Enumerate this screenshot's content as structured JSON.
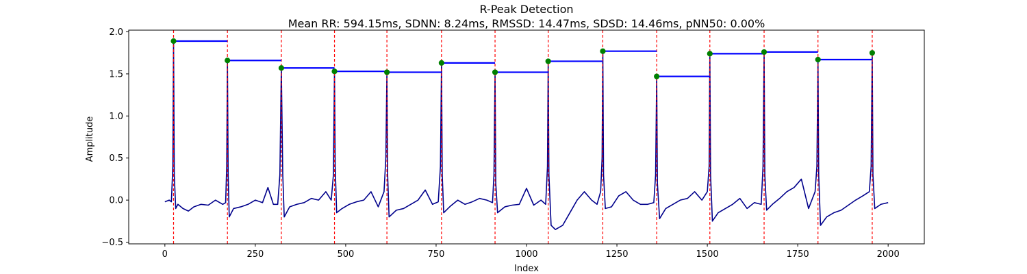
{
  "chart_data": {
    "type": "line",
    "title": "R-Peak Detection",
    "subtitle": "Mean RR: 594.15ms, SDNN: 8.24ms, RMSSD: 14.47ms, SDSD: 14.46ms, pNN50: 0.00%",
    "xlabel": "Index",
    "ylabel": "Amplitude",
    "xlim": [
      -100,
      2100
    ],
    "ylim": [
      -0.52,
      2.02
    ],
    "x_ticks": [
      0,
      250,
      500,
      750,
      1000,
      1250,
      1500,
      1750,
      2000
    ],
    "y_ticks": [
      -0.5,
      0.0,
      0.5,
      1.0,
      1.5,
      2.0
    ],
    "x_tick_labels": [
      "0",
      "250",
      "500",
      "750",
      "1000",
      "1250",
      "1500",
      "1750",
      "2000"
    ],
    "y_tick_labels": [
      "−0.5",
      "0.0",
      "0.5",
      "1.0",
      "1.5",
      "2.0"
    ],
    "grid": false,
    "colors": {
      "signal": "#00008b",
      "peak_marker": "#008000",
      "peak_line": "#ff0000",
      "rr_interval": "#0000ff"
    },
    "r_peaks": {
      "indices": [
        24,
        173,
        322,
        469,
        614,
        765,
        913,
        1060,
        1211,
        1360,
        1507,
        1657,
        1806,
        1956
      ],
      "amplitudes": [
        1.89,
        1.66,
        1.57,
        1.53,
        1.52,
        1.63,
        1.52,
        1.65,
        1.77,
        1.47,
        1.74,
        1.76,
        1.67,
        1.75
      ]
    },
    "signal": {
      "x": [
        0,
        12,
        18,
        22,
        24,
        26,
        30,
        36,
        50,
        65,
        80,
        100,
        120,
        140,
        160,
        168,
        171,
        173,
        175,
        178,
        190,
        210,
        230,
        250,
        270,
        285,
        300,
        312,
        318,
        322,
        326,
        330,
        345,
        365,
        385,
        405,
        425,
        445,
        460,
        466,
        469,
        471,
        475,
        490,
        510,
        530,
        550,
        570,
        590,
        606,
        611,
        614,
        616,
        620,
        640,
        660,
        680,
        700,
        720,
        740,
        756,
        762,
        765,
        767,
        771,
        790,
        810,
        830,
        850,
        870,
        890,
        906,
        910,
        913,
        915,
        920,
        940,
        960,
        980,
        1000,
        1020,
        1040,
        1053,
        1058,
        1060,
        1062,
        1068,
        1080,
        1100,
        1120,
        1140,
        1160,
        1180,
        1195,
        1205,
        1209,
        1211,
        1213,
        1218,
        1235,
        1255,
        1275,
        1295,
        1315,
        1335,
        1352,
        1357,
        1360,
        1362,
        1368,
        1385,
        1405,
        1425,
        1445,
        1465,
        1485,
        1500,
        1505,
        1507,
        1509,
        1514,
        1530,
        1550,
        1570,
        1590,
        1610,
        1630,
        1649,
        1654,
        1657,
        1659,
        1664,
        1680,
        1700,
        1720,
        1740,
        1760,
        1780,
        1798,
        1803,
        1806,
        1808,
        1813,
        1830,
        1850,
        1870,
        1890,
        1910,
        1930,
        1948,
        1953,
        1956,
        1958,
        1963,
        1980,
        2000
      ],
      "y": [
        -0.02,
        0.0,
        -0.02,
        0.4,
        1.89,
        0.3,
        -0.1,
        -0.05,
        -0.1,
        -0.13,
        -0.08,
        -0.05,
        -0.06,
        0.0,
        -0.05,
        -0.03,
        0.4,
        1.66,
        0.3,
        -0.2,
        -0.1,
        -0.08,
        -0.05,
        0.0,
        -0.03,
        0.15,
        -0.05,
        -0.05,
        0.3,
        1.57,
        0.3,
        -0.2,
        -0.08,
        -0.05,
        -0.03,
        0.02,
        0.0,
        0.1,
        0.0,
        0.3,
        1.53,
        0.4,
        -0.15,
        -0.1,
        -0.05,
        -0.02,
        0.0,
        0.1,
        -0.08,
        0.1,
        0.5,
        1.52,
        0.3,
        -0.2,
        -0.12,
        -0.1,
        -0.05,
        0.0,
        0.12,
        -0.05,
        -0.02,
        0.4,
        1.63,
        0.3,
        -0.15,
        -0.07,
        0.0,
        -0.05,
        -0.02,
        0.02,
        0.0,
        -0.03,
        0.3,
        1.52,
        0.2,
        -0.15,
        -0.08,
        -0.06,
        -0.05,
        0.14,
        -0.06,
        0.0,
        -0.05,
        0.4,
        1.65,
        0.3,
        -0.3,
        -0.35,
        -0.3,
        -0.15,
        0.0,
        0.1,
        0.0,
        -0.05,
        0.1,
        0.5,
        1.77,
        0.3,
        -0.1,
        -0.08,
        0.05,
        0.1,
        0.0,
        -0.05,
        -0.05,
        -0.03,
        0.3,
        1.47,
        0.2,
        -0.22,
        -0.1,
        -0.05,
        0.0,
        0.02,
        0.1,
        0.0,
        0.1,
        0.4,
        1.74,
        0.3,
        -0.25,
        -0.15,
        -0.1,
        -0.05,
        0.02,
        -0.1,
        -0.03,
        -0.05,
        0.4,
        1.76,
        0.3,
        -0.12,
        -0.05,
        0.02,
        0.1,
        0.15,
        0.25,
        -0.1,
        0.1,
        0.4,
        1.67,
        0.3,
        -0.3,
        -0.2,
        -0.15,
        -0.12,
        -0.06,
        0.0,
        0.05,
        0.1,
        0.4,
        1.75,
        0.3,
        -0.1,
        -0.05,
        -0.03
      ]
    }
  }
}
